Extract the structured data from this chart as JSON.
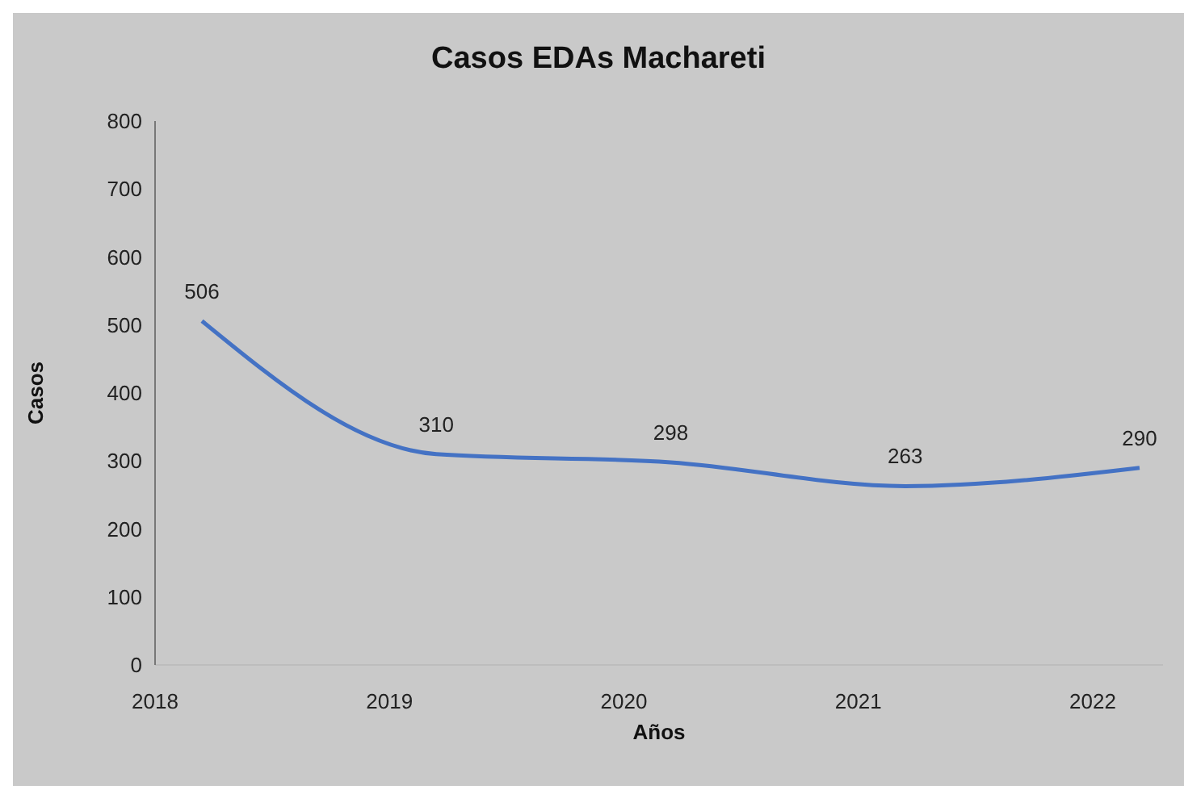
{
  "chart_data": {
    "type": "line",
    "title": "Casos EDAs Machareti",
    "xlabel": "Años",
    "ylabel": "Casos",
    "x": [
      2018.2,
      2019.2,
      2020.2,
      2021.2,
      2022.2
    ],
    "series": [
      {
        "color": "#4472c4",
        "values": [
          506,
          310,
          298,
          263,
          290
        ]
      }
    ],
    "xlim": [
      2018,
      2022.3
    ],
    "xticks": [
      2018,
      2019,
      2020,
      2021,
      2022
    ],
    "ylim": [
      0,
      800
    ],
    "yticks": [
      0,
      100,
      200,
      300,
      400,
      500,
      600,
      700,
      800
    ],
    "data_labels": true
  }
}
